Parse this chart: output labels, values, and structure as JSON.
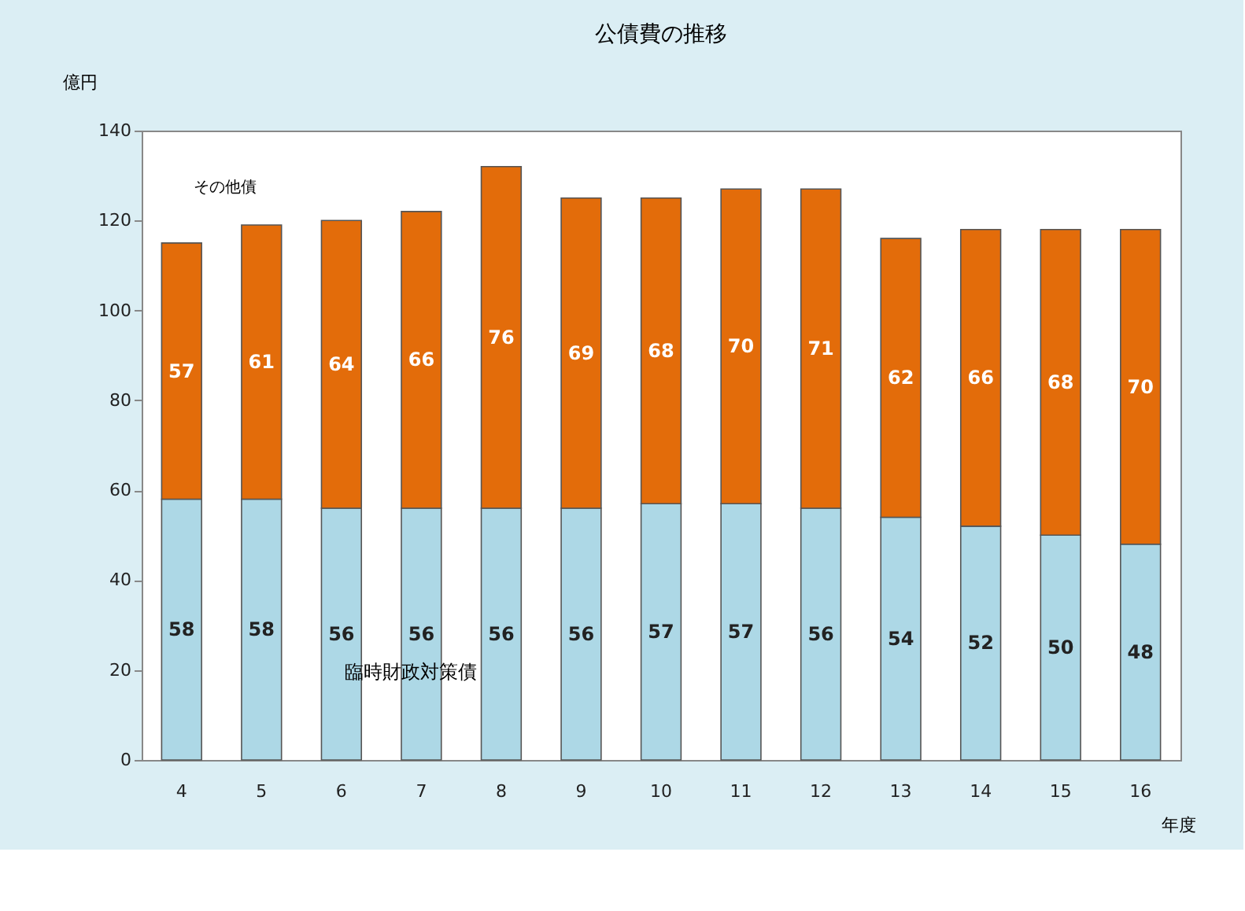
{
  "chart_data": {
    "type": "bar",
    "title": "公債費の推移",
    "xlabel": "年度",
    "ylabel": "億円",
    "categories": [
      "4",
      "5",
      "6",
      "7",
      "8",
      "9",
      "10",
      "11",
      "12",
      "13",
      "14",
      "15",
      "16"
    ],
    "stacked": true,
    "series": [
      {
        "name": "臨時財政対策債",
        "color": "#add8e6",
        "values": [
          58,
          58,
          56,
          56,
          56,
          56,
          57,
          57,
          56,
          54,
          52,
          50,
          48
        ]
      },
      {
        "name": "その他債",
        "color": "#e36c0a",
        "values": [
          57,
          61,
          64,
          66,
          76,
          69,
          68,
          70,
          71,
          62,
          66,
          68,
          70
        ]
      }
    ],
    "ylim": [
      0,
      140
    ],
    "yticks": [
      0,
      20,
      40,
      60,
      80,
      100,
      120,
      140
    ],
    "data_labels": true,
    "grid": false,
    "legend": false
  }
}
